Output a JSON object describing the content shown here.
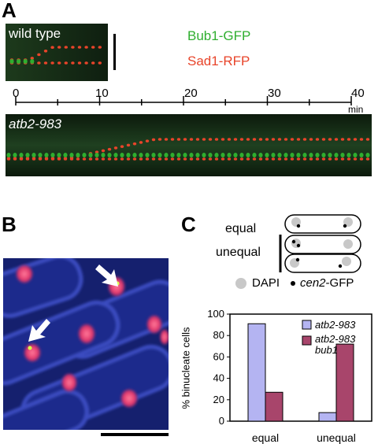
{
  "panel_a": {
    "letter": "A",
    "wild_type_label": "wild type",
    "mutant_label": "atb2-983",
    "legend_green": "Bub1-GFP",
    "legend_red": "Sad1-RFP",
    "colors": {
      "green": "#2fae2f",
      "red": "#e8442a"
    },
    "timeline": {
      "ticks": [
        "0",
        "10",
        "20",
        "30",
        "40"
      ],
      "unit": "min",
      "range": [
        0,
        40
      ]
    }
  },
  "panel_b": {
    "letter": "B"
  },
  "panel_c": {
    "letter": "C",
    "label_equal": "equal",
    "label_unequal": "unequal",
    "dapi_label": "DAPI",
    "cen2_label_italic": "cen2",
    "cen2_label_suffix": "-GFP"
  },
  "chart_data": {
    "type": "bar",
    "categories": [
      "equal",
      "unequal"
    ],
    "ylabel": "% binucleate cells",
    "ylim": [
      0,
      100
    ],
    "yticks": [
      "0",
      "20",
      "40",
      "60",
      "80",
      "100"
    ],
    "series": [
      {
        "name": "atb2-983",
        "values": [
          91,
          8
        ],
        "color": "#b4b4f2"
      },
      {
        "name": "atb2-983 bub1",
        "name_line1": "atb2-983",
        "name_line2": "bub1",
        "values": [
          27,
          72
        ],
        "color": "#a8456b"
      }
    ],
    "legend_placement": "top-right",
    "grid": false
  }
}
